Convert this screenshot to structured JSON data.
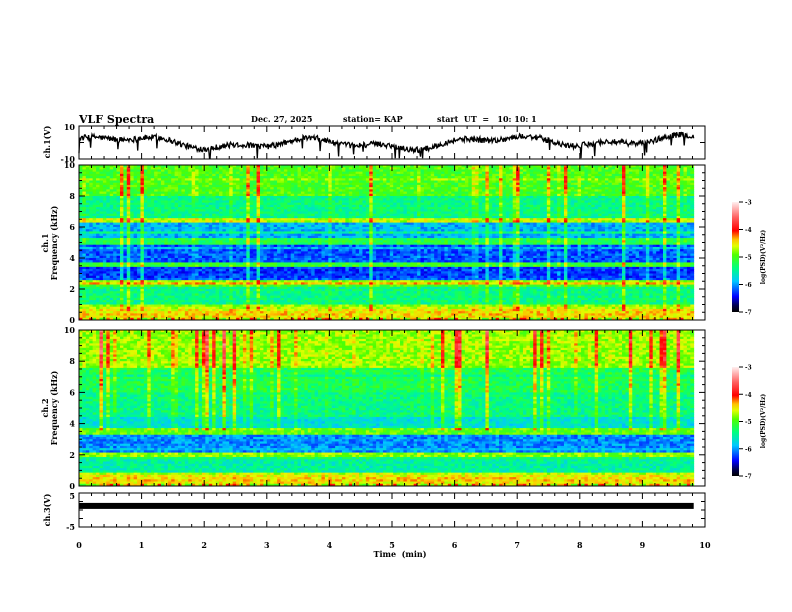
{
  "chart_data": {
    "type": "heatmap",
    "title": "VLF Spectra",
    "date": "Dec. 27, 2025",
    "station": "station= KAP",
    "start_ut": "start  UT  =   10: 10: 1",
    "xlabel": "Time  (min)",
    "xlim": [
      0,
      10
    ],
    "data_end_min": 9.82,
    "x_ticks": [
      "0",
      "1",
      "2",
      "3",
      "4",
      "5",
      "6",
      "7",
      "8",
      "9",
      "10"
    ],
    "panels": [
      {
        "id": "ch1-waveform",
        "type": "line",
        "ylabel": "ch.1(V)",
        "ylim": [
          -10,
          10
        ],
        "y_ticks": [
          "10",
          "-10"
        ],
        "color": "#000000"
      },
      {
        "id": "ch1-spectrogram",
        "type": "heatmap",
        "ylabel_line1": "ch.1",
        "ylabel_line2": "Frequency  (kHz)",
        "ylim": [
          0,
          10
        ],
        "y_ticks": [
          "0",
          "2",
          "4",
          "6",
          "8",
          "10"
        ],
        "colorbar": {
          "label": "log(PSD)(V²/Hz)",
          "range": [
            -7,
            -3
          ],
          "ticks": [
            "-3",
            "-4",
            "-5",
            "-6",
            "-7"
          ]
        }
      },
      {
        "id": "ch2-spectrogram",
        "type": "heatmap",
        "ylabel_line1": "ch.2",
        "ylabel_line2": "Frequency  (kHz)",
        "ylim": [
          0,
          10
        ],
        "y_ticks": [
          "0",
          "2",
          "4",
          "6",
          "8",
          "10"
        ],
        "colorbar": {
          "label": "log(PSD)(V²/Hz)",
          "range": [
            -7,
            -3
          ],
          "ticks": [
            "-3",
            "-4",
            "-5",
            "-6",
            "-7"
          ]
        }
      },
      {
        "id": "ch3-waveform",
        "type": "line",
        "ylabel": "ch.3(V)",
        "ylim": [
          -5,
          5
        ],
        "y_ticks": [
          "5",
          "-5"
        ],
        "level_v": 1.2,
        "color": "#000000"
      }
    ]
  }
}
